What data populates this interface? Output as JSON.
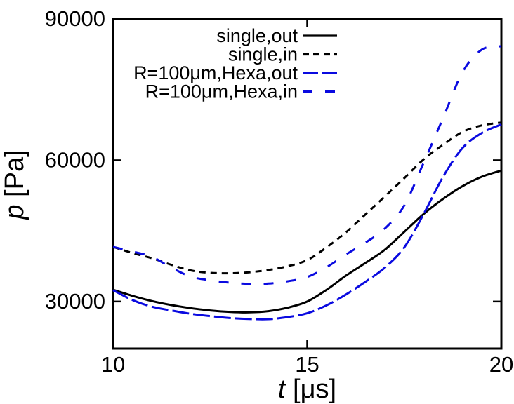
{
  "figure": {
    "background": "#ffffff",
    "axis_color": "#000000",
    "curve_black": "#000000",
    "curve_blue": "#0a0ae0"
  },
  "chart_data": {
    "type": "line",
    "title": "",
    "xlabel_var": "t",
    "xlabel_unit": " [μs]",
    "ylabel_var": "p",
    "ylabel_unit": " [Pa]",
    "xlim": [
      10,
      20
    ],
    "ylim": [
      20000,
      90000
    ],
    "xticks": [
      10,
      15,
      20
    ],
    "xtick_labels": [
      "10",
      "15",
      "20"
    ],
    "yticks": [
      30000,
      60000,
      90000
    ],
    "ytick_labels": [
      "30000",
      "60000",
      "90000"
    ],
    "grid": false,
    "legend_position": "top-center-inside",
    "x": [
      10,
      10.5,
      11,
      11.5,
      12,
      12.5,
      13,
      13.5,
      14,
      14.5,
      15,
      15.5,
      16,
      16.5,
      17,
      17.5,
      18,
      18.5,
      19,
      19.5,
      20
    ],
    "series": [
      {
        "name": "single,out",
        "color": "#000000",
        "style": "solid",
        "values": [
          32500,
          31200,
          30100,
          29250,
          28600,
          28100,
          27800,
          27700,
          27950,
          28700,
          30000,
          32500,
          35500,
          38200,
          41000,
          44800,
          48600,
          51800,
          54500,
          56500,
          57800
        ]
      },
      {
        "name": "single,in",
        "color": "#000000",
        "style": "dashed",
        "values": [
          41600,
          40300,
          39200,
          37800,
          36600,
          36100,
          36000,
          36200,
          36700,
          37500,
          38800,
          41500,
          44700,
          48500,
          52300,
          56200,
          60200,
          63300,
          66000,
          67400,
          68000
        ]
      },
      {
        "name": "R=100μm,Hexa,out",
        "color": "#0a0ae0",
        "style": "long-dash",
        "values": [
          32400,
          30300,
          28900,
          28100,
          27400,
          26900,
          26500,
          26300,
          26250,
          26700,
          27500,
          29200,
          31500,
          34200,
          37200,
          41500,
          48600,
          56500,
          62600,
          65800,
          67600
        ]
      },
      {
        "name": "R=100μm,Hexa,in",
        "color": "#0a0ae0",
        "style": "sparse-dash",
        "values": [
          41600,
          40600,
          39500,
          37200,
          35300,
          34500,
          34000,
          33750,
          33800,
          34300,
          35200,
          37300,
          40000,
          42500,
          45500,
          50400,
          59500,
          69000,
          78700,
          83500,
          84200
        ]
      }
    ]
  }
}
